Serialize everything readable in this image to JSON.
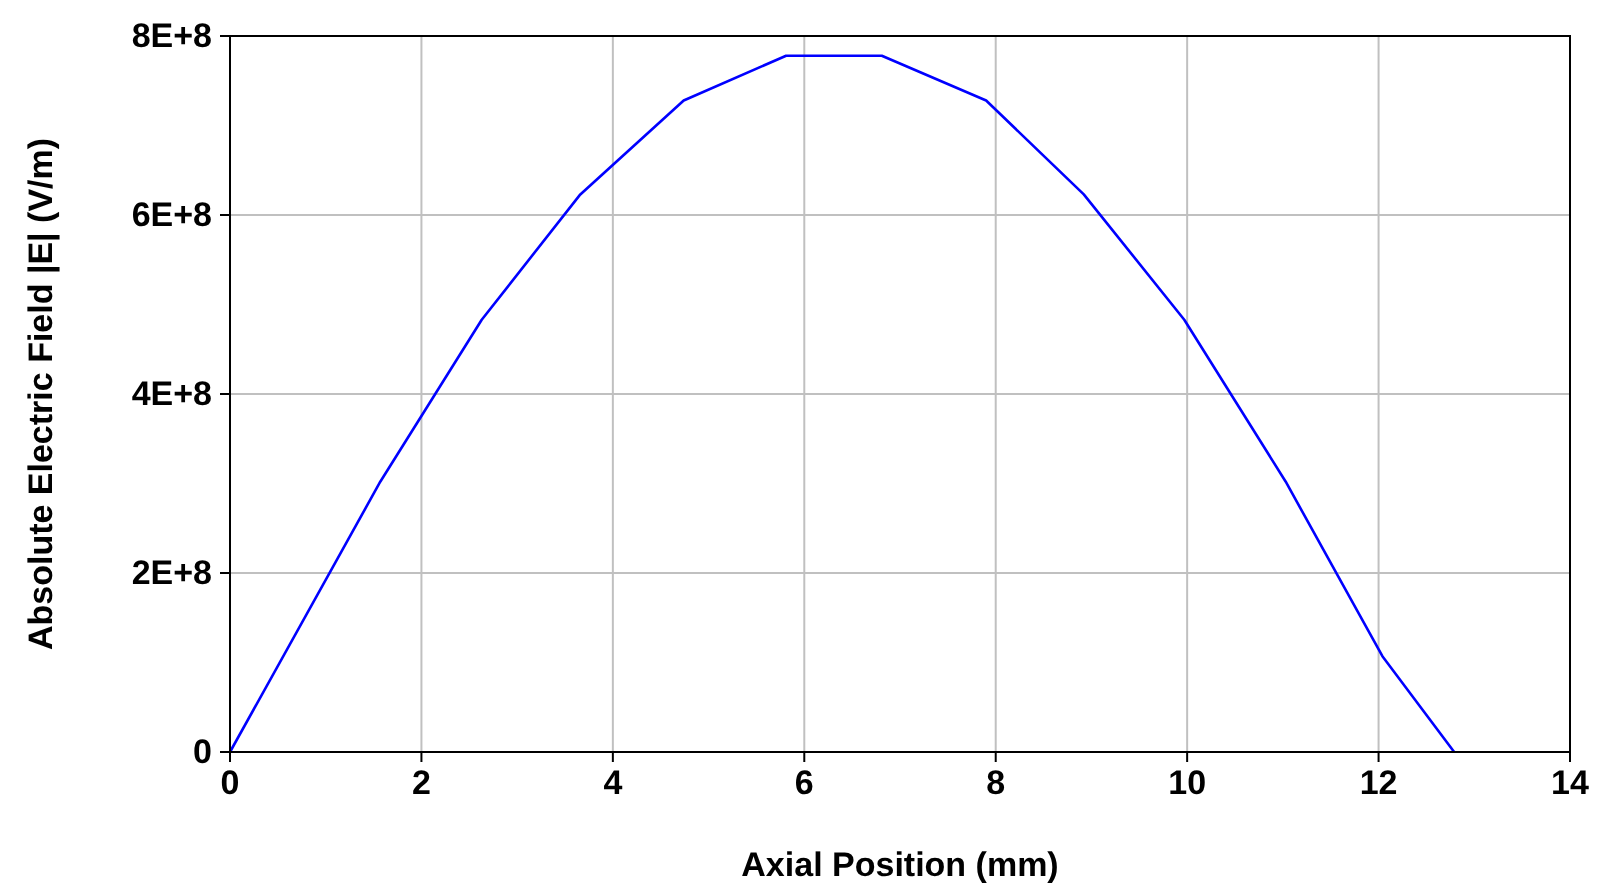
{
  "chart_data": {
    "type": "line",
    "xlabel": "Axial Position (mm)",
    "ylabel": "Absolute Electric Field |E| (V/m)",
    "xlim": [
      0,
      14
    ],
    "xticks": [
      0,
      2,
      4,
      6,
      8,
      10,
      12,
      14
    ],
    "ylim": [
      0,
      800000000
    ],
    "yticks": [
      {
        "value": 0,
        "label": "0"
      },
      {
        "value": 200000000,
        "label": "2E+8"
      },
      {
        "value": 400000000,
        "label": "4E+8"
      },
      {
        "value": 600000000,
        "label": "6E+8"
      },
      {
        "value": 800000000,
        "label": "8E+8"
      }
    ],
    "grid": true,
    "marker": "none",
    "line_style": "solid",
    "series": [
      {
        "color": "#0000ff",
        "x": [
          0,
          1.57,
          2.63,
          3.66,
          4.74,
          5.81,
          6.81,
          7.9,
          8.92,
          9.97,
          11.03,
          12.04,
          12.79
        ],
        "values": [
          0,
          302000000,
          483000000,
          623000000,
          728000000,
          778000000,
          778000000,
          728000000,
          623000000,
          483000000,
          302000000,
          107000000,
          0
        ]
      }
    ]
  }
}
